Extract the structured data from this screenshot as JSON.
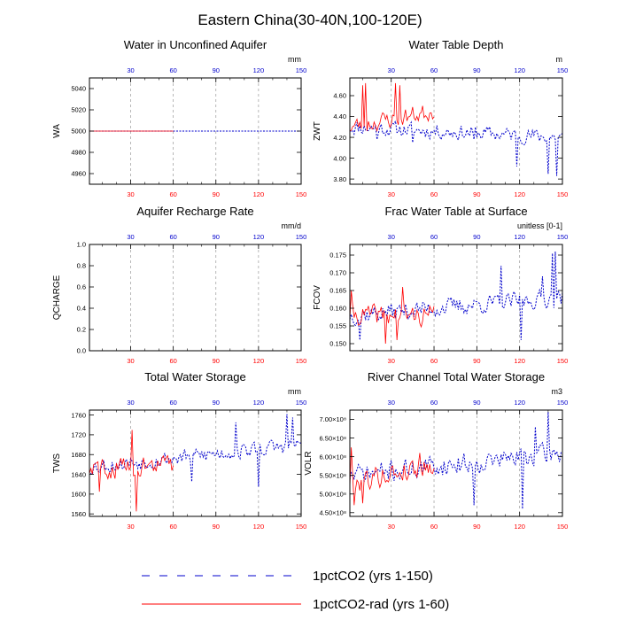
{
  "figure": {
    "title": "Eastern China(30-40N,100-120E)"
  },
  "colors": {
    "ctrl": "#0000cc",
    "rad": "#ff0000",
    "grid": "#9a9a9a"
  },
  "legend": {
    "entries": [
      {
        "series": "ctrl",
        "label": "1pctCO2 (yrs 1-150)"
      },
      {
        "series": "rad",
        "label": "1pctCO2-rad (yrs 1-60)"
      }
    ]
  },
  "chart_data": [
    {
      "id": "wa",
      "type": "line",
      "title": "Water in Unconfined Aquifer",
      "ylabel": "WA",
      "unit": "mm",
      "xlim": [
        1,
        150
      ],
      "xticks": [
        30,
        60,
        90,
        120,
        150
      ],
      "ylim": [
        4950,
        5050
      ],
      "yticks": [
        4960,
        4980,
        5000,
        5020,
        5040
      ],
      "ytick_labels": [
        "4960",
        "4980",
        "5000",
        "5020",
        "5040"
      ],
      "grid": "vertical-dashed",
      "series": [
        {
          "id": "ctrl",
          "x_range": [
            1,
            150
          ],
          "constant": 5000
        },
        {
          "id": "rad",
          "x_range": [
            1,
            60
          ],
          "constant": 5000
        }
      ]
    },
    {
      "id": "zwt",
      "type": "line",
      "title": "Water Table Depth",
      "ylabel": "ZWT",
      "unit": "m",
      "xlim": [
        1,
        150
      ],
      "xticks": [
        30,
        60,
        90,
        120,
        150
      ],
      "ylim": [
        3.75,
        4.77
      ],
      "yticks": [
        3.8,
        4.0,
        4.2,
        4.4,
        4.6
      ],
      "ytick_labels": [
        "3.80",
        "4.00",
        "4.20",
        "4.40",
        "4.60"
      ],
      "grid": "vertical-dashed",
      "series": [
        {
          "id": "ctrl",
          "x_range": [
            1,
            150
          ],
          "start": 4.3,
          "end": 4.2,
          "noise": 0.1,
          "dips": [
            [
              20,
              4.18
            ],
            [
              45,
              4.15
            ],
            [
              88,
              4.18
            ],
            [
              118,
              3.92
            ],
            [
              140,
              3.85
            ],
            [
              146,
              3.83
            ]
          ],
          "seed": 11
        },
        {
          "id": "rad",
          "x_range": [
            1,
            60
          ],
          "start": 4.3,
          "end": 4.45,
          "noise": 0.12,
          "peaks": [
            [
              10,
              4.7
            ],
            [
              12,
              4.72
            ],
            [
              33,
              4.72
            ],
            [
              36,
              4.7
            ]
          ],
          "seed": 23
        }
      ]
    },
    {
      "id": "qcharge",
      "type": "line",
      "title": "Aquifer Recharge Rate",
      "ylabel": "QCHARGE",
      "unit": "mm/d",
      "xlim": [
        1,
        150
      ],
      "xticks": [
        30,
        60,
        90,
        120,
        150
      ],
      "ylim": [
        0.0,
        1.0
      ],
      "yticks": [
        0.0,
        0.2,
        0.4,
        0.6,
        0.8,
        1.0
      ],
      "ytick_labels": [
        "0.0",
        "0.2",
        "0.4",
        "0.6",
        "0.8",
        "1.0"
      ],
      "grid": "vertical-dashed",
      "series": []
    },
    {
      "id": "fcov",
      "type": "line",
      "title": "Frac Water Table at Surface",
      "ylabel": "FCOV",
      "unit": "unitless [0-1]",
      "xlim": [
        1,
        150
      ],
      "xticks": [
        30,
        60,
        90,
        120,
        150
      ],
      "ylim": [
        0.148,
        0.178
      ],
      "yticks": [
        0.15,
        0.155,
        0.16,
        0.165,
        0.17,
        0.175
      ],
      "ytick_labels": [
        "0.150",
        "0.155",
        "0.160",
        "0.165",
        "0.170",
        "0.175"
      ],
      "grid": "vertical-dashed",
      "series": [
        {
          "id": "ctrl",
          "x_range": [
            1,
            150
          ],
          "start": 0.158,
          "end": 0.163,
          "noise": 0.0035,
          "peaks": [
            [
              107,
              0.172
            ],
            [
              136,
              0.169
            ],
            [
              143,
              0.1755
            ],
            [
              145,
              0.176
            ]
          ],
          "dips": [
            [
              8,
              0.151
            ],
            [
              121,
              0.151
            ]
          ],
          "seed": 37
        },
        {
          "id": "rad",
          "x_range": [
            1,
            60
          ],
          "start": 0.158,
          "end": 0.158,
          "noise": 0.004,
          "peaks": [
            [
              2,
              0.165
            ],
            [
              38,
              0.166
            ]
          ],
          "dips": [
            [
              26,
              0.15
            ],
            [
              34,
              0.151
            ]
          ],
          "seed": 41
        }
      ]
    },
    {
      "id": "tws",
      "type": "line",
      "title": "Total Water Storage",
      "ylabel": "TWS",
      "unit": "mm",
      "xlim": [
        1,
        150
      ],
      "xticks": [
        30,
        60,
        90,
        120,
        150
      ],
      "ylim": [
        1555,
        1770
      ],
      "yticks": [
        1560,
        1600,
        1640,
        1680,
        1720,
        1760
      ],
      "ytick_labels": [
        "1560",
        "1600",
        "1640",
        "1680",
        "1720",
        "1760"
      ],
      "grid": "vertical-dashed",
      "series": [
        {
          "id": "ctrl",
          "x_range": [
            1,
            150
          ],
          "start": 1655,
          "end": 1700,
          "noise": 22,
          "peaks": [
            [
              104,
              1745
            ],
            [
              140,
              1762
            ],
            [
              144,
              1755
            ]
          ],
          "dips": [
            [
              73,
              1625
            ],
            [
              120,
              1615
            ]
          ],
          "seed": 53
        },
        {
          "id": "rad",
          "x_range": [
            1,
            60
          ],
          "start": 1650,
          "end": 1660,
          "noise": 28,
          "peaks": [
            [
              31,
              1730
            ]
          ],
          "dips": [
            [
              34,
              1565
            ],
            [
              8,
              1605
            ]
          ],
          "seed": 59
        }
      ]
    },
    {
      "id": "voltr",
      "type": "line",
      "title": "River Channel Total Water Storage",
      "ylabel": "VOLR",
      "unit": "m3",
      "xlim": [
        1,
        150
      ],
      "xticks": [
        30,
        60,
        90,
        120,
        150
      ],
      "ylim": [
        440000000.0,
        725000000.0
      ],
      "yticks": [
        450000000.0,
        500000000.0,
        550000000.0,
        600000000.0,
        650000000.0,
        700000000.0
      ],
      "ytick_labels": [
        "4.50×10⁸",
        "5.00×10⁸",
        "5.50×10⁸",
        "6.00×10⁸",
        "6.50×10⁸",
        "7.00×10⁸"
      ],
      "grid": "vertical-dashed",
      "series": [
        {
          "id": "ctrl",
          "x_range": [
            1,
            150
          ],
          "start": 550000000.0,
          "end": 610000000.0,
          "noise": 38000000.0,
          "peaks": [
            [
              140,
              720000000.0
            ],
            [
              131,
              680000000.0
            ]
          ],
          "dips": [
            [
              88,
              470000000.0
            ],
            [
              122,
              460000000.0
            ]
          ],
          "seed": 71
        },
        {
          "id": "rad",
          "x_range": [
            1,
            60
          ],
          "start": 530000000.0,
          "end": 580000000.0,
          "noise": 40000000.0,
          "peaks": [
            [
              2,
              625000000.0
            ],
            [
              50,
              610000000.0
            ]
          ],
          "dips": [
            [
              4,
              470000000.0
            ],
            [
              10,
              475000000.0
            ]
          ],
          "seed": 79
        }
      ]
    }
  ]
}
